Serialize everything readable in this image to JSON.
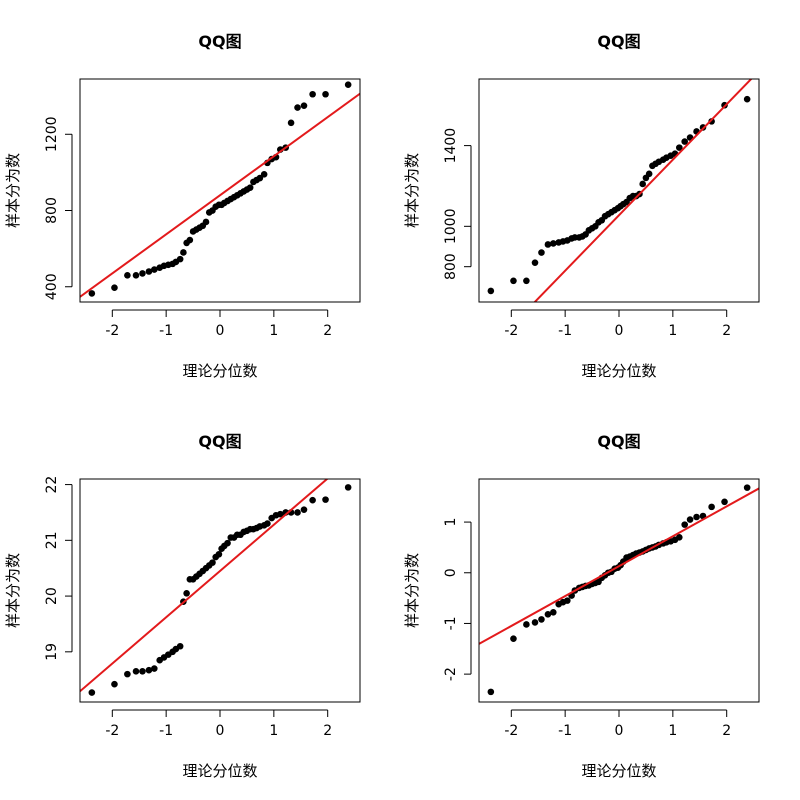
{
  "chart_data": [
    {
      "type": "scatter",
      "title": "QQ图",
      "xlabel": "理论分位数",
      "ylabel": "样本分为数",
      "xlim": [
        -2.6,
        2.6
      ],
      "ylim": [
        320,
        1490
      ],
      "xticks": [
        -2,
        -1,
        0,
        1,
        2
      ],
      "yticks": [
        400,
        800,
        1200
      ],
      "series": [
        {
          "x": [
            -2.38,
            -1.96,
            -1.72,
            -1.56,
            -1.44,
            -1.32,
            -1.22,
            -1.12,
            -1.04,
            -0.96,
            -0.88,
            -0.82,
            -0.74,
            -0.68,
            -0.62,
            -0.56,
            -0.5,
            -0.44,
            -0.38,
            -0.32,
            -0.26,
            -0.2,
            -0.14,
            -0.08,
            -0.02,
            0.03,
            0.08,
            0.14,
            0.2,
            0.26,
            0.32,
            0.38,
            0.44,
            0.5,
            0.56,
            0.62,
            0.68,
            0.74,
            0.82,
            0.88,
            0.96,
            1.04,
            1.12,
            1.22,
            1.32,
            1.44,
            1.56,
            1.72,
            1.96,
            2.38
          ],
          "y": [
            365,
            395,
            460,
            460,
            470,
            480,
            490,
            500,
            510,
            515,
            520,
            530,
            545,
            580,
            630,
            645,
            690,
            700,
            710,
            720,
            740,
            790,
            800,
            820,
            830,
            830,
            840,
            850,
            860,
            870,
            880,
            890,
            900,
            910,
            920,
            950,
            960,
            970,
            990,
            1050,
            1070,
            1080,
            1120,
            1130,
            1260,
            1340,
            1350,
            1410,
            1410,
            1460
          ]
        }
      ],
      "reference_line": {
        "slope": 205,
        "intercept": 880
      }
    },
    {
      "type": "scatter",
      "title": "QQ图",
      "xlabel": "理论分位数",
      "ylabel": "样本分为数",
      "xlim": [
        -2.6,
        2.6
      ],
      "ylim": [
        625,
        1730
      ],
      "xticks": [
        -2,
        -1,
        0,
        1,
        2
      ],
      "yticks": [
        800,
        1000,
        1400
      ],
      "series": [
        {
          "x": [
            -2.38,
            -1.96,
            -1.72,
            -1.56,
            -1.44,
            -1.32,
            -1.22,
            -1.12,
            -1.04,
            -0.96,
            -0.88,
            -0.82,
            -0.74,
            -0.68,
            -0.62,
            -0.56,
            -0.5,
            -0.44,
            -0.38,
            -0.32,
            -0.26,
            -0.2,
            -0.14,
            -0.08,
            -0.02,
            0.03,
            0.08,
            0.14,
            0.2,
            0.26,
            0.32,
            0.38,
            0.44,
            0.5,
            0.56,
            0.62,
            0.68,
            0.74,
            0.82,
            0.88,
            0.96,
            1.04,
            1.12,
            1.22,
            1.32,
            1.44,
            1.56,
            1.72,
            1.96,
            2.38
          ],
          "y": [
            680,
            730,
            730,
            820,
            870,
            910,
            915,
            920,
            925,
            930,
            940,
            945,
            945,
            950,
            960,
            980,
            990,
            1000,
            1020,
            1030,
            1050,
            1060,
            1070,
            1080,
            1090,
            1100,
            1110,
            1120,
            1140,
            1150,
            1150,
            1160,
            1210,
            1240,
            1260,
            1300,
            1310,
            1320,
            1330,
            1340,
            1350,
            1360,
            1390,
            1420,
            1440,
            1470,
            1490,
            1520,
            1600,
            1630
          ]
        }
      ],
      "reference_line": {
        "slope": 275,
        "intercept": 1055
      }
    },
    {
      "type": "scatter",
      "title": "QQ图",
      "xlabel": "理论分位数",
      "ylabel": "样本分为数",
      "xlim": [
        -2.6,
        2.6
      ],
      "ylim": [
        18.1,
        22.1
      ],
      "xticks": [
        -2,
        -1,
        0,
        1,
        2
      ],
      "yticks": [
        19,
        20,
        21,
        22
      ],
      "series": [
        {
          "x": [
            -2.38,
            -1.96,
            -1.72,
            -1.56,
            -1.44,
            -1.32,
            -1.22,
            -1.12,
            -1.04,
            -0.96,
            -0.88,
            -0.82,
            -0.74,
            -0.68,
            -0.62,
            -0.56,
            -0.5,
            -0.44,
            -0.38,
            -0.32,
            -0.26,
            -0.2,
            -0.14,
            -0.08,
            -0.02,
            0.03,
            0.08,
            0.14,
            0.2,
            0.26,
            0.32,
            0.38,
            0.44,
            0.5,
            0.56,
            0.62,
            0.68,
            0.74,
            0.82,
            0.88,
            0.96,
            1.04,
            1.12,
            1.22,
            1.32,
            1.44,
            1.56,
            1.72,
            1.96,
            2.38
          ],
          "y": [
            18.27,
            18.42,
            18.6,
            18.65,
            18.65,
            18.67,
            18.7,
            18.85,
            18.9,
            18.95,
            19.0,
            19.05,
            19.1,
            19.9,
            20.05,
            20.3,
            20.3,
            20.35,
            20.4,
            20.45,
            20.5,
            20.55,
            20.6,
            20.7,
            20.75,
            20.85,
            20.9,
            20.95,
            21.05,
            21.05,
            21.1,
            21.1,
            21.15,
            21.17,
            21.2,
            21.2,
            21.22,
            21.25,
            21.27,
            21.3,
            21.4,
            21.45,
            21.47,
            21.5,
            21.5,
            21.5,
            21.55,
            21.72,
            21.73,
            21.95
          ]
        }
      ],
      "reference_line": {
        "slope": 0.83,
        "intercept": 20.45
      }
    },
    {
      "type": "scatter",
      "title": "QQ图",
      "xlabel": "理论分位数",
      "ylabel": "样本分为数",
      "xlim": [
        -2.6,
        2.6
      ],
      "ylim": [
        -2.55,
        1.85
      ],
      "xticks": [
        -2,
        -1,
        0,
        1,
        2
      ],
      "yticks": [
        -2,
        -1,
        0,
        1
      ],
      "series": [
        {
          "x": [
            -2.38,
            -1.96,
            -1.72,
            -1.56,
            -1.44,
            -1.32,
            -1.22,
            -1.12,
            -1.04,
            -0.96,
            -0.88,
            -0.82,
            -0.74,
            -0.68,
            -0.62,
            -0.56,
            -0.5,
            -0.44,
            -0.38,
            -0.32,
            -0.26,
            -0.2,
            -0.14,
            -0.08,
            -0.02,
            0.03,
            0.08,
            0.14,
            0.2,
            0.26,
            0.32,
            0.38,
            0.44,
            0.5,
            0.56,
            0.62,
            0.68,
            0.74,
            0.82,
            0.88,
            0.96,
            1.04,
            1.12,
            1.22,
            1.32,
            1.44,
            1.56,
            1.72,
            1.96,
            2.38
          ],
          "y": [
            -2.35,
            -1.3,
            -1.02,
            -0.98,
            -0.92,
            -0.82,
            -0.78,
            -0.62,
            -0.58,
            -0.55,
            -0.45,
            -0.35,
            -0.3,
            -0.28,
            -0.26,
            -0.25,
            -0.22,
            -0.2,
            -0.18,
            -0.1,
            -0.05,
            0.0,
            0.02,
            0.08,
            0.1,
            0.15,
            0.22,
            0.3,
            0.32,
            0.35,
            0.38,
            0.4,
            0.42,
            0.45,
            0.48,
            0.5,
            0.52,
            0.55,
            0.58,
            0.6,
            0.62,
            0.65,
            0.7,
            0.95,
            1.05,
            1.1,
            1.12,
            1.3,
            1.4,
            1.68
          ]
        }
      ],
      "reference_line": {
        "slope": 0.59,
        "intercept": 0.13
      }
    }
  ]
}
